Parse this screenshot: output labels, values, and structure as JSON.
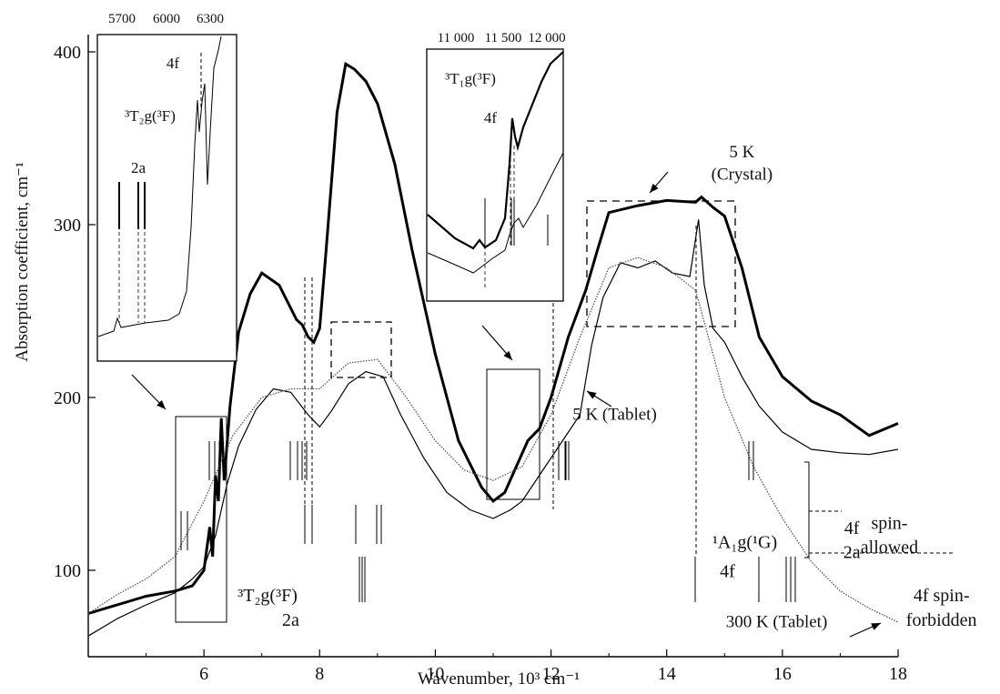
{
  "chart_data": [
    {
      "type": "line",
      "xlabel": "Wavenumber, 10³ cm⁻¹",
      "ylabel": "Absorption coefficient, cm⁻¹",
      "xlim": [
        4,
        18
      ],
      "ylim": [
        50,
        410
      ],
      "xticks": [
        6,
        8,
        10,
        12,
        14,
        16,
        18
      ],
      "yticks": [
        100,
        200,
        300,
        400
      ],
      "grid": false,
      "series": [
        {
          "name": "5 K (Crystal)",
          "style": "thick",
          "x": [
            4.0,
            4.5,
            5.0,
            5.5,
            5.8,
            6.0,
            6.1,
            6.15,
            6.2,
            6.25,
            6.3,
            6.35,
            6.45,
            6.6,
            6.8,
            7.0,
            7.3,
            7.6,
            7.7,
            7.8,
            7.9,
            8.0,
            8.1,
            8.3,
            8.45,
            8.6,
            8.8,
            9.0,
            9.3,
            9.6,
            10.0,
            10.4,
            10.8,
            11.0,
            11.2,
            11.4,
            11.6,
            11.8,
            12.0,
            12.3,
            12.6,
            12.8,
            13.0,
            13.5,
            14.0,
            14.5,
            14.6,
            14.8,
            15.0,
            15.3,
            15.6,
            16.0,
            16.5,
            17.0,
            17.5,
            18.0
          ],
          "y": [
            75,
            80,
            85,
            88,
            91,
            100,
            125,
            108,
            155,
            140,
            188,
            152,
            195,
            238,
            260,
            272,
            265,
            245,
            242,
            235,
            232,
            240,
            280,
            365,
            393,
            390,
            383,
            370,
            335,
            285,
            225,
            175,
            148,
            140,
            145,
            160,
            175,
            182,
            200,
            235,
            262,
            285,
            307,
            311,
            314,
            313,
            316,
            310,
            305,
            275,
            235,
            212,
            198,
            190,
            178,
            185
          ]
        },
        {
          "name": "5 K (Tablet)",
          "style": "thin",
          "x": [
            4.0,
            4.5,
            5.0,
            5.5,
            5.8,
            6.0,
            6.2,
            6.4,
            6.6,
            6.9,
            7.2,
            7.5,
            7.8,
            8.0,
            8.2,
            8.5,
            8.8,
            9.1,
            9.4,
            9.8,
            10.2,
            10.6,
            11.0,
            11.3,
            11.5,
            11.7,
            11.9,
            12.2,
            12.5,
            12.7,
            12.9,
            13.2,
            13.5,
            13.8,
            14.1,
            14.4,
            14.55,
            14.65,
            14.8,
            15.0,
            15.3,
            15.6,
            16.0,
            16.5,
            17.0,
            17.5,
            18.0
          ],
          "y": [
            62,
            72,
            80,
            87,
            95,
            102,
            120,
            150,
            172,
            193,
            205,
            203,
            190,
            183,
            192,
            208,
            215,
            212,
            190,
            165,
            145,
            135,
            130,
            135,
            140,
            150,
            160,
            175,
            190,
            230,
            258,
            278,
            275,
            279,
            272,
            270,
            303,
            265,
            240,
            232,
            212,
            195,
            180,
            170,
            168,
            167,
            170
          ]
        },
        {
          "name": "300 K (Tablet)",
          "style": "dotted",
          "x": [
            4.0,
            4.5,
            5.0,
            5.5,
            6.0,
            6.5,
            7.0,
            7.5,
            8.0,
            8.5,
            9.0,
            9.5,
            10.0,
            10.5,
            11.0,
            11.5,
            12.0,
            12.5,
            13.0,
            13.5,
            14.0,
            14.5,
            14.8,
            15.0,
            15.5,
            16.0,
            16.5,
            17.0,
            17.5,
            18.0
          ],
          "y": [
            75,
            86,
            95,
            108,
            140,
            178,
            200,
            205,
            205,
            220,
            222,
            200,
            175,
            158,
            152,
            160,
            190,
            235,
            275,
            281,
            275,
            262,
            225,
            200,
            160,
            130,
            105,
            88,
            78,
            70
          ]
        }
      ],
      "annotations": [
        {
          "text": "5 K",
          "x": 15.3,
          "y": 339
        },
        {
          "text": "(Crystal)",
          "x": 15.3,
          "y": 326
        },
        {
          "text": "5 K (Tablet)",
          "x": 13.1,
          "y": 187
        },
        {
          "text": "300 K (Tablet)",
          "x": 15.9,
          "y": 67
        },
        {
          "text": "¹A₁g(¹G)",
          "x": 15.35,
          "y": 113
        },
        {
          "text": "4f",
          "x": 15.05,
          "y": 96
        },
        {
          "text": "³T₂g(³F)",
          "x": 7.1,
          "y": 82
        },
        {
          "text": "2a",
          "x": 7.5,
          "y": 68
        },
        {
          "text": "4f",
          "x": 17.2,
          "y": 121
        },
        {
          "text": "2a",
          "x": 17.2,
          "y": 107
        },
        {
          "text": "spin-",
          "x": 17.85,
          "y": 124
        },
        {
          "text": "allowed",
          "x": 17.85,
          "y": 110
        },
        {
          "text": "4f spin-",
          "x": 18.75,
          "y": 82
        },
        {
          "text": "forbidden",
          "x": 18.75,
          "y": 68
        }
      ]
    },
    {
      "type": "line",
      "inset": "left",
      "xticks": [
        5700,
        6000,
        6300
      ],
      "labels": [
        "4f",
        "³T₂g(³F)",
        "2a"
      ]
    },
    {
      "type": "line",
      "inset": "middle",
      "xticks": [
        "11 000",
        "11 500",
        "12 000"
      ],
      "labels": [
        "³T₁g(³F)",
        "4f"
      ]
    }
  ]
}
